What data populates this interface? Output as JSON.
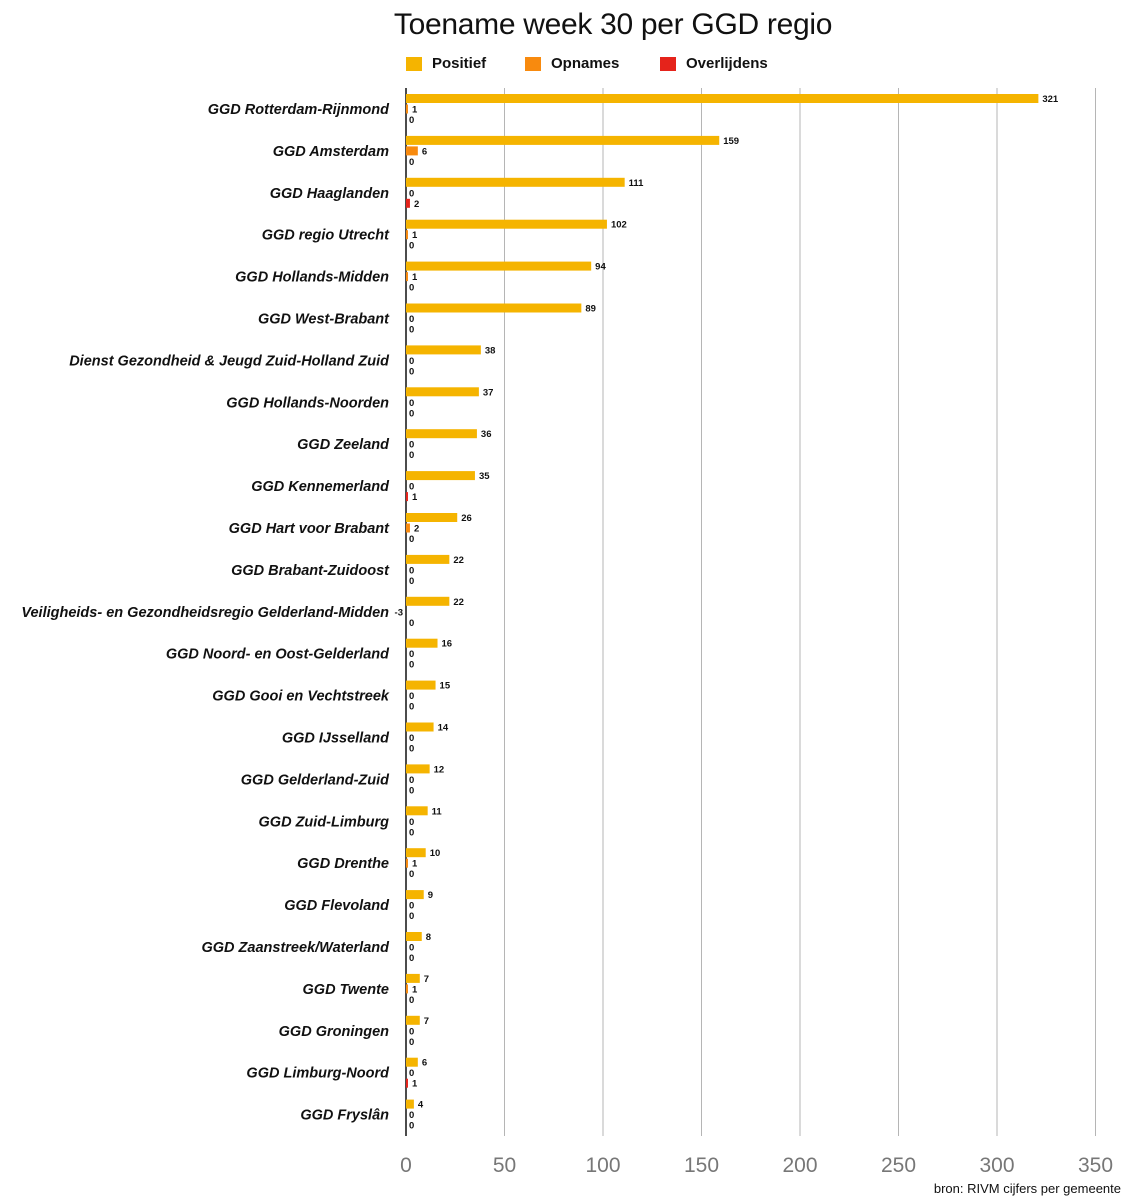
{
  "chart_data": {
    "type": "bar",
    "title": "Toename week 30 per GGD regio",
    "source": "bron: RIVM cijfers per gemeente",
    "orientation": "horizontal",
    "xlim": [
      0,
      350
    ],
    "x_ticks": [
      0,
      50,
      100,
      150,
      200,
      250,
      300,
      350
    ],
    "grid": true,
    "legend_position": "top",
    "categories": [
      "GGD Rotterdam-Rijnmond",
      "GGD Amsterdam",
      "GGD Haaglanden",
      "GGD regio Utrecht",
      "GGD Hollands-Midden",
      "GGD West-Brabant",
      "Dienst Gezondheid & Jeugd Zuid-Holland Zuid",
      "GGD Hollands-Noorden",
      "GGD Zeeland",
      "GGD Kennemerland",
      "GGD Hart voor Brabant",
      "GGD Brabant-Zuidoost",
      "Veiligheids- en Gezondheidsregio Gelderland-Midden",
      "GGD Noord- en Oost-Gelderland",
      "GGD Gooi en Vechtstreek",
      "GGD IJsselland",
      "GGD Gelderland-Zuid",
      "GGD Zuid-Limburg",
      "GGD Drenthe",
      "GGD Flevoland",
      "GGD Zaanstreek/Waterland",
      "GGD Twente",
      "GGD Groningen",
      "GGD Limburg-Noord",
      "GGD Fryslân"
    ],
    "series": [
      {
        "name": "Positief",
        "color": "#F5B400",
        "values": [
          321,
          159,
          111,
          102,
          94,
          89,
          38,
          37,
          36,
          35,
          26,
          22,
          22,
          16,
          15,
          14,
          12,
          11,
          10,
          9,
          8,
          7,
          7,
          6,
          4
        ]
      },
      {
        "name": "Opnames",
        "color": "#F88A0E",
        "values": [
          1,
          6,
          0,
          1,
          1,
          0,
          0,
          0,
          0,
          0,
          2,
          0,
          -3,
          0,
          0,
          0,
          0,
          0,
          1,
          0,
          0,
          1,
          0,
          0,
          0
        ]
      },
      {
        "name": "Overlijdens",
        "color": "#E5231B",
        "values": [
          0,
          0,
          2,
          0,
          0,
          0,
          0,
          0,
          0,
          1,
          0,
          0,
          0,
          0,
          0,
          0,
          0,
          0,
          0,
          0,
          0,
          0,
          0,
          1,
          0
        ]
      }
    ]
  }
}
